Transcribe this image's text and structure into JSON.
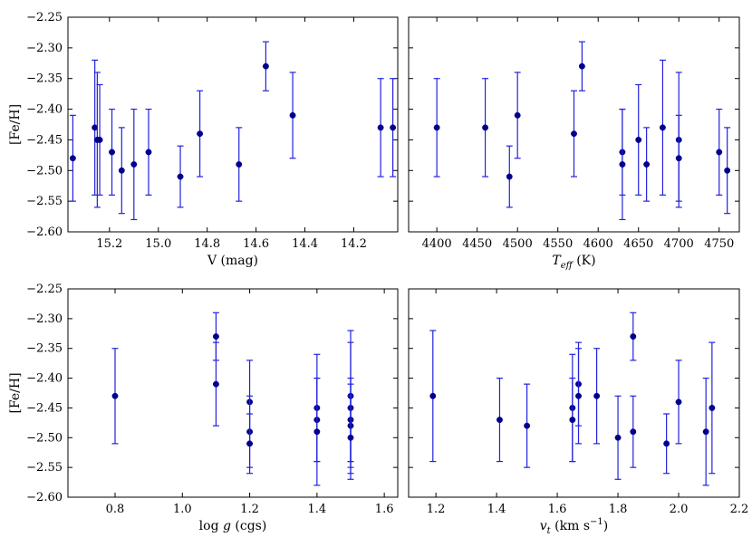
{
  "chart_data": [
    {
      "type": "scatter",
      "id": "v-mag",
      "xlabel": "V (mag)",
      "ylabel": "[Fe/H]",
      "xlim": [
        15.37,
        14.02
      ],
      "ylim": [
        -2.6,
        -2.25
      ],
      "xticks": [
        15.2,
        15.0,
        14.8,
        14.6,
        14.4,
        14.2
      ],
      "xtick_labels": [
        "15.2",
        "15.0",
        "14.8",
        "14.6",
        "14.4",
        "14.2"
      ],
      "yticks": [
        -2.6,
        -2.55,
        -2.5,
        -2.45,
        -2.4,
        -2.35,
        -2.3,
        -2.25
      ],
      "ytick_labels": [
        "−2.60",
        "−2.55",
        "−2.50",
        "−2.45",
        "−2.40",
        "−2.35",
        "−2.30",
        "−2.25"
      ],
      "points": [
        {
          "x": 15.35,
          "y": -2.48,
          "err": 0.07
        },
        {
          "x": 15.26,
          "y": -2.43,
          "err": 0.11
        },
        {
          "x": 15.25,
          "y": -2.45,
          "err": 0.11
        },
        {
          "x": 15.24,
          "y": -2.45,
          "err": 0.09
        },
        {
          "x": 15.19,
          "y": -2.47,
          "err": 0.07
        },
        {
          "x": 15.15,
          "y": -2.5,
          "err": 0.07
        },
        {
          "x": 15.1,
          "y": -2.49,
          "err": 0.09
        },
        {
          "x": 15.04,
          "y": -2.47,
          "err": 0.07
        },
        {
          "x": 14.91,
          "y": -2.51,
          "err": 0.05
        },
        {
          "x": 14.83,
          "y": -2.44,
          "err": 0.07
        },
        {
          "x": 14.67,
          "y": -2.49,
          "err": 0.06
        },
        {
          "x": 14.56,
          "y": -2.33,
          "err": 0.04
        },
        {
          "x": 14.45,
          "y": -2.41,
          "err": 0.07
        },
        {
          "x": 14.09,
          "y": -2.43,
          "err": 0.08
        },
        {
          "x": 14.04,
          "y": -2.43,
          "err": 0.08
        }
      ]
    },
    {
      "type": "scatter",
      "id": "teff",
      "xlabel_main": "T",
      "xlabel_sub": "eff",
      "xlabel_unit": " (K)",
      "ylabel": "",
      "xlim": [
        4365,
        4775
      ],
      "ylim": [
        -2.6,
        -2.25
      ],
      "xticks": [
        4400,
        4450,
        4500,
        4550,
        4600,
        4650,
        4700,
        4750
      ],
      "xtick_labels": [
        "4400",
        "4450",
        "4500",
        "4550",
        "4600",
        "4650",
        "4700",
        "4750"
      ],
      "yticks": [
        -2.6,
        -2.55,
        -2.5,
        -2.45,
        -2.4,
        -2.35,
        -2.3,
        -2.25
      ],
      "points": [
        {
          "x": 4400,
          "y": -2.43,
          "err": 0.08
        },
        {
          "x": 4460,
          "y": -2.43,
          "err": 0.08
        },
        {
          "x": 4490,
          "y": -2.51,
          "err": 0.05
        },
        {
          "x": 4500,
          "y": -2.41,
          "err": 0.07
        },
        {
          "x": 4570,
          "y": -2.44,
          "err": 0.07
        },
        {
          "x": 4580,
          "y": -2.33,
          "err": 0.04
        },
        {
          "x": 4630,
          "y": -2.47,
          "err": 0.07
        },
        {
          "x": 4630,
          "y": -2.49,
          "err": 0.09
        },
        {
          "x": 4650,
          "y": -2.45,
          "err": 0.09
        },
        {
          "x": 4660,
          "y": -2.49,
          "err": 0.06
        },
        {
          "x": 4680,
          "y": -2.43,
          "err": 0.11
        },
        {
          "x": 4700,
          "y": -2.45,
          "err": 0.11
        },
        {
          "x": 4700,
          "y": -2.48,
          "err": 0.07
        },
        {
          "x": 4750,
          "y": -2.47,
          "err": 0.07
        },
        {
          "x": 4760,
          "y": -2.5,
          "err": 0.07
        }
      ]
    },
    {
      "type": "scatter",
      "id": "logg",
      "xlabel_main": "log ",
      "xlabel_italic": "g",
      "xlabel_unit": " (cgs)",
      "ylabel": "[Fe/H]",
      "xlim": [
        0.66,
        1.64
      ],
      "ylim": [
        -2.6,
        -2.25
      ],
      "xticks": [
        0.8,
        1.0,
        1.2,
        1.4,
        1.6
      ],
      "xtick_labels": [
        "0.8",
        "1.0",
        "1.2",
        "1.4",
        "1.6"
      ],
      "yticks": [
        -2.6,
        -2.55,
        -2.5,
        -2.45,
        -2.4,
        -2.35,
        -2.3,
        -2.25
      ],
      "ytick_labels": [
        "−2.60",
        "−2.55",
        "−2.50",
        "−2.45",
        "−2.40",
        "−2.35",
        "−2.30",
        "−2.25"
      ],
      "points": [
        {
          "x": 0.8,
          "y": -2.43,
          "err": 0.08
        },
        {
          "x": 1.1,
          "y": -2.33,
          "err": 0.04
        },
        {
          "x": 1.1,
          "y": -2.41,
          "err": 0.07
        },
        {
          "x": 1.2,
          "y": -2.44,
          "err": 0.07
        },
        {
          "x": 1.2,
          "y": -2.49,
          "err": 0.06
        },
        {
          "x": 1.2,
          "y": -2.51,
          "err": 0.05
        },
        {
          "x": 1.4,
          "y": -2.45,
          "err": 0.09
        },
        {
          "x": 1.4,
          "y": -2.47,
          "err": 0.07
        },
        {
          "x": 1.4,
          "y": -2.49,
          "err": 0.09
        },
        {
          "x": 1.5,
          "y": -2.43,
          "err": 0.11
        },
        {
          "x": 1.5,
          "y": -2.45,
          "err": 0.11
        },
        {
          "x": 1.5,
          "y": -2.47,
          "err": 0.07
        },
        {
          "x": 1.5,
          "y": -2.48,
          "err": 0.07
        },
        {
          "x": 1.5,
          "y": -2.5,
          "err": 0.07
        }
      ]
    },
    {
      "type": "scatter",
      "id": "vt",
      "xlabel_main": "v",
      "xlabel_sub": "t",
      "xlabel_unit": " (km s",
      "xlabel_sup": "−1",
      "xlabel_close": ")",
      "ylabel": "",
      "xlim": [
        1.11,
        2.2
      ],
      "ylim": [
        -2.6,
        -2.25
      ],
      "xticks": [
        1.2,
        1.4,
        1.6,
        1.8,
        2.0,
        2.2
      ],
      "xtick_labels": [
        "1.2",
        "1.4",
        "1.6",
        "1.8",
        "2.0",
        "2.2"
      ],
      "yticks": [
        -2.6,
        -2.55,
        -2.5,
        -2.45,
        -2.4,
        -2.35,
        -2.3,
        -2.25
      ],
      "points": [
        {
          "x": 1.19,
          "y": -2.43,
          "err": 0.11
        },
        {
          "x": 1.41,
          "y": -2.47,
          "err": 0.07
        },
        {
          "x": 1.5,
          "y": -2.48,
          "err": 0.07
        },
        {
          "x": 1.65,
          "y": -2.45,
          "err": 0.09
        },
        {
          "x": 1.65,
          "y": -2.47,
          "err": 0.07
        },
        {
          "x": 1.67,
          "y": -2.41,
          "err": 0.07
        },
        {
          "x": 1.67,
          "y": -2.43,
          "err": 0.08
        },
        {
          "x": 1.73,
          "y": -2.43,
          "err": 0.08
        },
        {
          "x": 1.8,
          "y": -2.5,
          "err": 0.07
        },
        {
          "x": 1.85,
          "y": -2.33,
          "err": 0.04
        },
        {
          "x": 1.85,
          "y": -2.49,
          "err": 0.06
        },
        {
          "x": 1.96,
          "y": -2.51,
          "err": 0.05
        },
        {
          "x": 2.0,
          "y": -2.44,
          "err": 0.07
        },
        {
          "x": 2.09,
          "y": -2.49,
          "err": 0.09
        },
        {
          "x": 2.11,
          "y": -2.45,
          "err": 0.11
        }
      ]
    }
  ]
}
